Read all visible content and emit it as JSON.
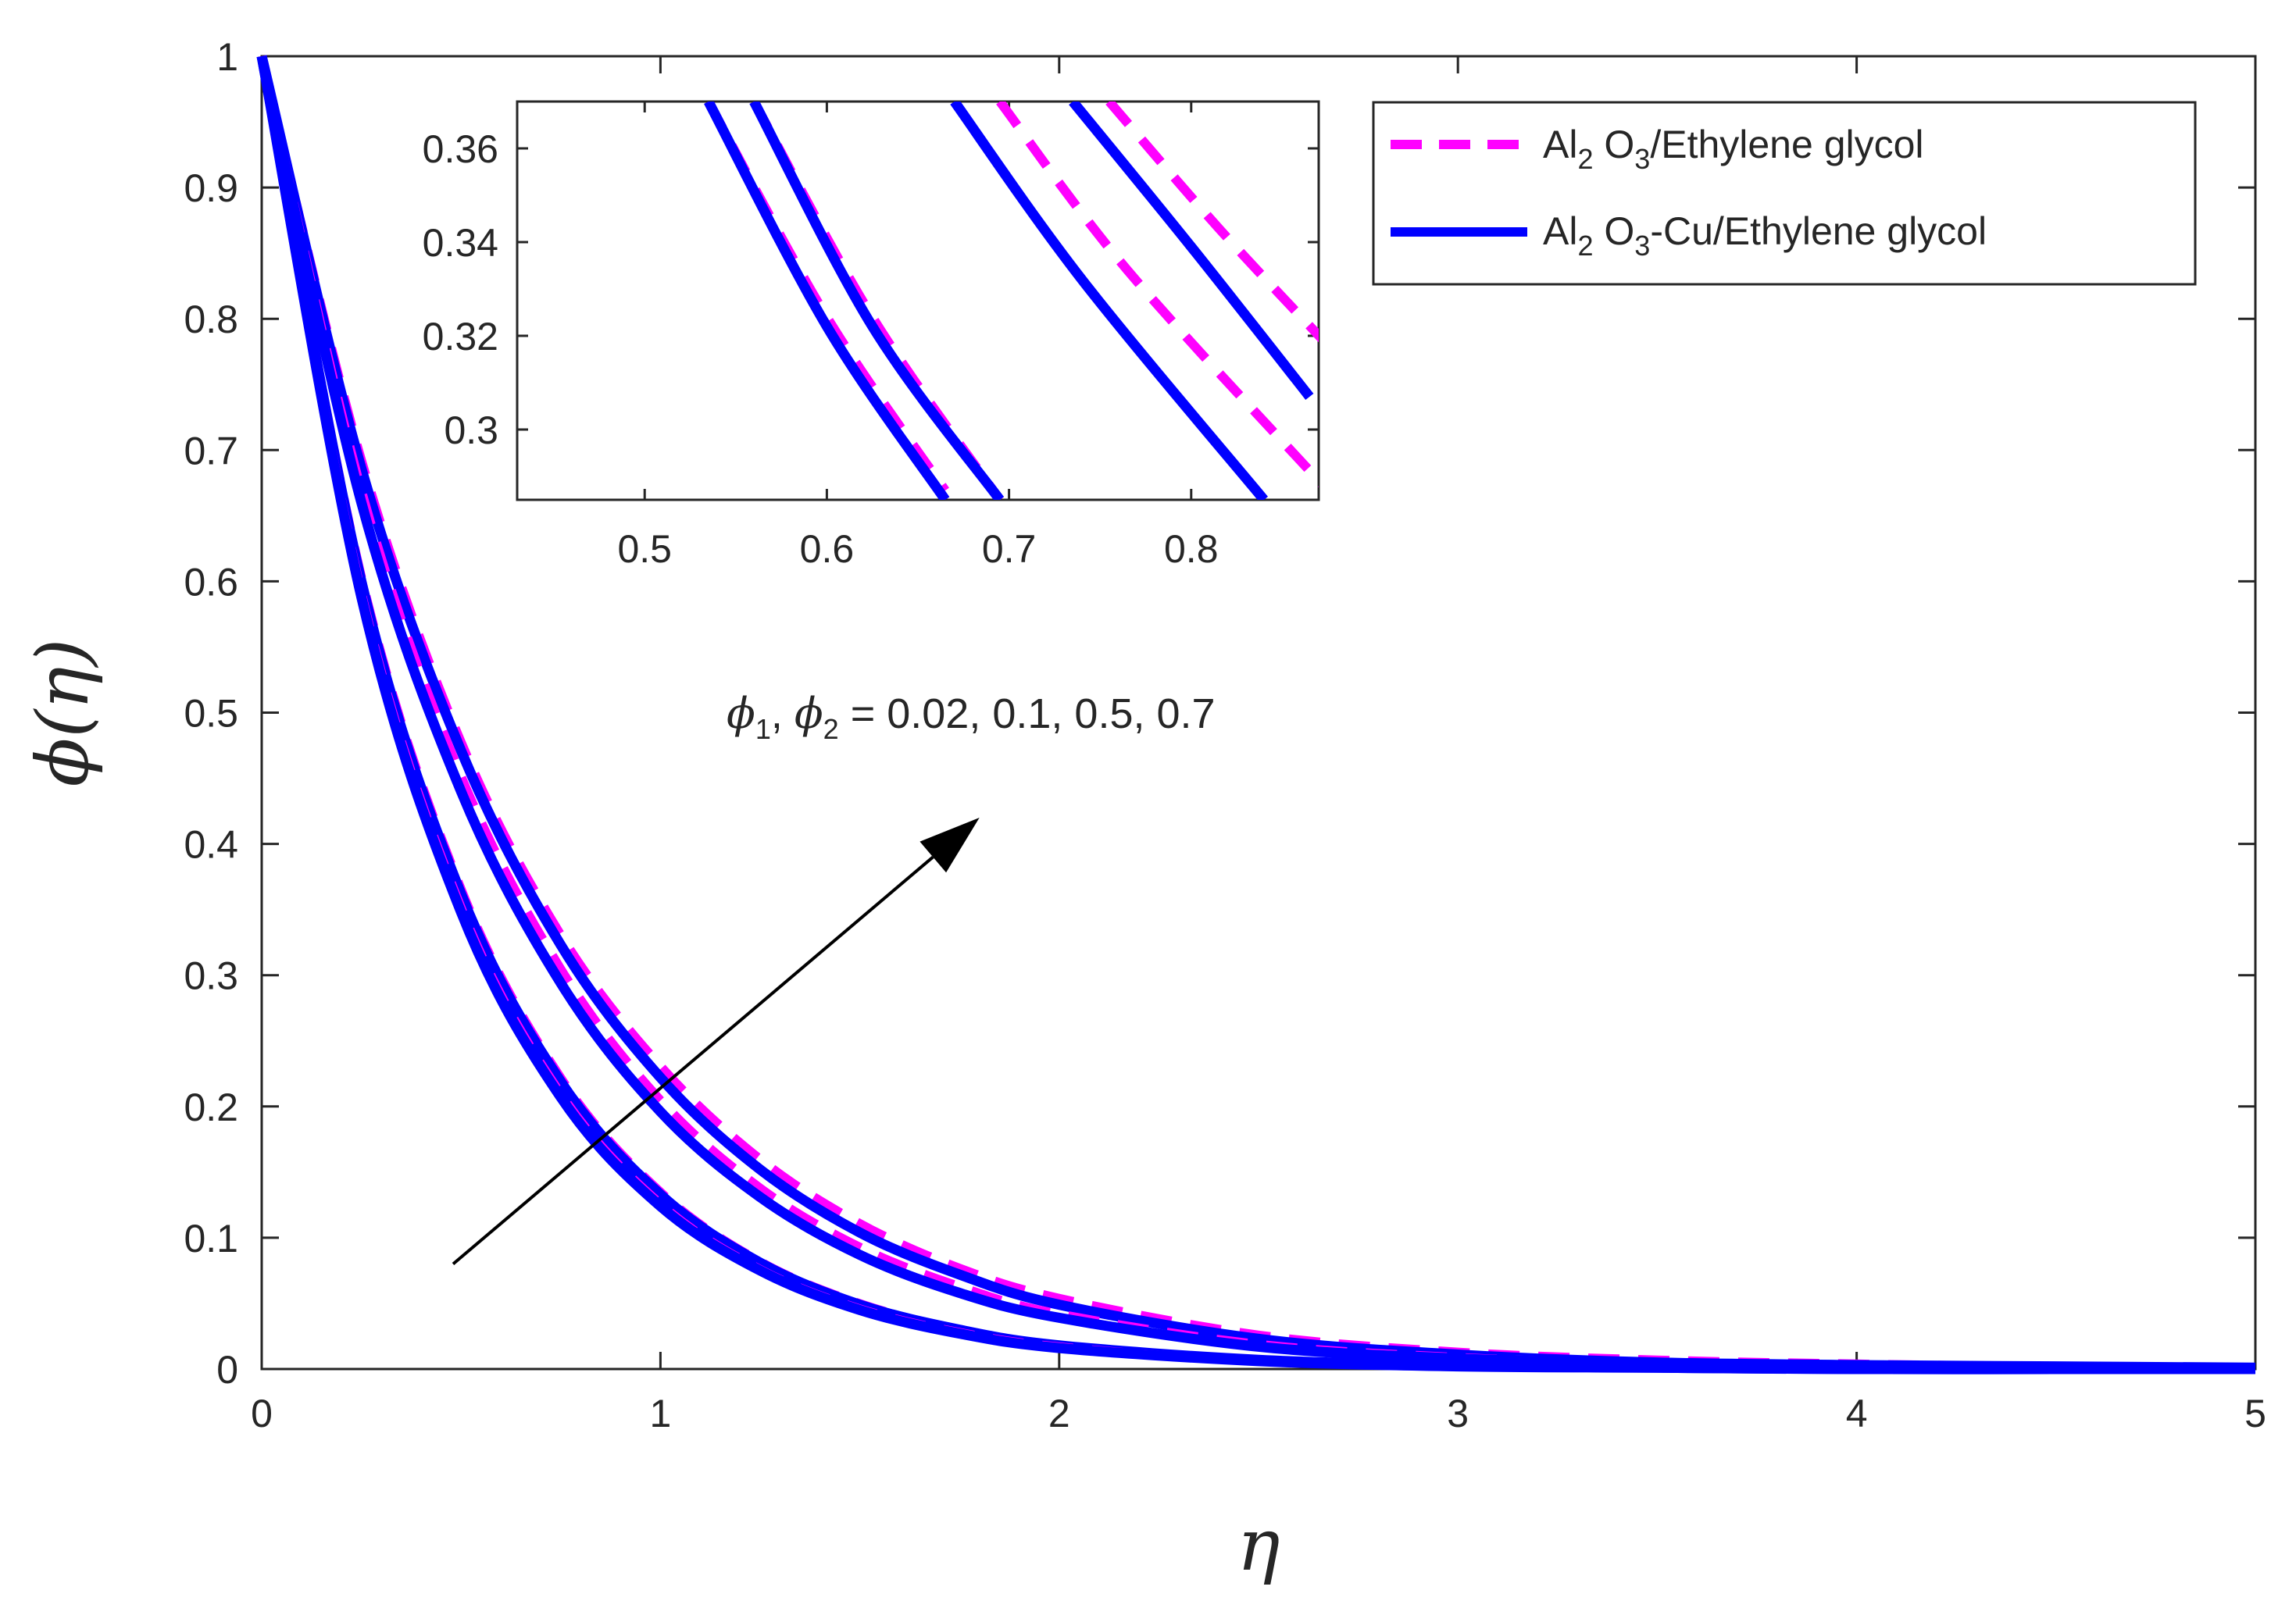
{
  "colors": {
    "al2o3": "#ff00ff",
    "hybrid": "#0000ff",
    "axes": "#262626",
    "arrow": "#000000"
  },
  "chart_data": {
    "type": "line",
    "xlabel": "η",
    "ylabel": "ϕ(η)",
    "xlim": [
      0,
      5
    ],
    "ylim": [
      0,
      1
    ],
    "xticks": [
      "0",
      "1",
      "2",
      "3",
      "4",
      "5"
    ],
    "yticks": [
      "0",
      "0.1",
      "0.2",
      "0.3",
      "0.4",
      "0.5",
      "0.6",
      "0.7",
      "0.8",
      "0.9",
      "1"
    ],
    "x": [
      0,
      0.25,
      0.5,
      0.75,
      1.0,
      1.25,
      1.5,
      1.75,
      2.0,
      2.5,
      3.0,
      3.5,
      4.0,
      4.5,
      5.0
    ],
    "series": [
      {
        "legend": "al2o3",
        "style": "dashed",
        "values": [
          1.0,
          0.693,
          0.478,
          0.331,
          0.231,
          0.16,
          0.111,
          0.077,
          0.054,
          0.026,
          0.013,
          0.007,
          0.004,
          0.002,
          0.001
        ]
      },
      {
        "legend": "hybrid",
        "style": "solid",
        "values": [
          1.0,
          0.686,
          0.471,
          0.323,
          0.222,
          0.152,
          0.104,
          0.072,
          0.049,
          0.023,
          0.011,
          0.005,
          0.003,
          0.002,
          0.001
        ]
      },
      {
        "legend": "al2o3",
        "style": "dashed",
        "values": [
          1.0,
          0.67,
          0.452,
          0.305,
          0.205,
          0.138,
          0.093,
          0.063,
          0.042,
          0.019,
          0.009,
          0.004,
          0.002,
          0.001,
          0.0
        ]
      },
      {
        "legend": "hybrid",
        "style": "solid",
        "values": [
          1.0,
          0.66,
          0.44,
          0.294,
          0.196,
          0.131,
          0.087,
          0.058,
          0.039,
          0.017,
          0.008,
          0.004,
          0.002,
          0.001,
          0.0
        ]
      },
      {
        "legend": "al2o3",
        "style": "dashed",
        "values": [
          1.0,
          0.604,
          0.366,
          0.222,
          0.135,
          0.082,
          0.05,
          0.03,
          0.018,
          0.007,
          0.003,
          0.001,
          0.0,
          0.0,
          0.0
        ]
      },
      {
        "legend": "hybrid",
        "style": "solid",
        "values": [
          1.0,
          0.6,
          0.362,
          0.219,
          0.133,
          0.081,
          0.049,
          0.03,
          0.018,
          0.007,
          0.003,
          0.001,
          0.0,
          0.0,
          0.0
        ]
      },
      {
        "legend": "al2o3",
        "style": "dashed",
        "values": [
          1.0,
          0.592,
          0.352,
          0.21,
          0.126,
          0.076,
          0.046,
          0.028,
          0.017,
          0.006,
          0.002,
          0.001,
          0.0,
          0.0,
          0.0
        ]
      },
      {
        "legend": "hybrid",
        "style": "solid",
        "values": [
          1.0,
          0.588,
          0.348,
          0.207,
          0.124,
          0.075,
          0.045,
          0.027,
          0.016,
          0.006,
          0.002,
          0.001,
          0.0,
          0.0,
          0.0
        ]
      }
    ],
    "legend": {
      "position": "top-right",
      "entries": [
        {
          "key": "al2o3",
          "style": "dashed",
          "label_main": "Al",
          "label_sub1": "2",
          "label_mid": " O",
          "label_sub2": "3",
          "label_tail": "/Ethylene glycol"
        },
        {
          "key": "hybrid",
          "style": "solid",
          "label_main": "Al",
          "label_sub1": "2",
          "label_mid": " O",
          "label_sub2": "3",
          "label_tail": "-Cu/Ethylene glycol"
        }
      ]
    },
    "annotation": {
      "phi": "ϕ",
      "sub1": "1",
      "sep": ", ",
      "sub2": "2",
      "tail": " = 0.02, 0.1, 0.5, 0.7",
      "arrow_from": [
        0.48,
        0.08
      ],
      "arrow_to": [
        1.8,
        0.42
      ]
    },
    "inset": {
      "xlim": [
        0.43,
        0.87
      ],
      "ylim": [
        0.285,
        0.37
      ],
      "xticks": [
        "0.5",
        "0.6",
        "0.7",
        "0.8"
      ],
      "yticks": [
        "0.3",
        "0.32",
        "0.34",
        "0.36"
      ],
      "series": [
        {
          "legend": "al2o3",
          "style": "dashed",
          "points": [
            [
              0.535,
              0.37
            ],
            [
              0.6,
              0.324
            ],
            [
              0.665,
              0.287
            ]
          ]
        },
        {
          "legend": "hybrid",
          "style": "solid",
          "points": [
            [
              0.535,
              0.37
            ],
            [
              0.6,
              0.322
            ],
            [
              0.665,
              0.285
            ]
          ]
        },
        {
          "legend": "al2o3",
          "style": "dashed",
          "points": [
            [
              0.56,
              0.37
            ],
            [
              0.625,
              0.324
            ],
            [
              0.695,
              0.285
            ]
          ]
        },
        {
          "legend": "hybrid",
          "style": "solid",
          "points": [
            [
              0.56,
              0.37
            ],
            [
              0.625,
              0.322
            ],
            [
              0.695,
              0.285
            ]
          ]
        },
        {
          "legend": "al2o3",
          "style": "dashed",
          "points": [
            [
              0.755,
              0.37
            ],
            [
              0.815,
              0.343
            ],
            [
              0.875,
              0.318
            ]
          ]
        },
        {
          "legend": "hybrid",
          "style": "solid",
          "points": [
            [
              0.735,
              0.37
            ],
            [
              0.8,
              0.339
            ],
            [
              0.865,
              0.307
            ]
          ]
        },
        {
          "legend": "al2o3",
          "style": "dashed",
          "points": [
            [
              0.695,
              0.37
            ],
            [
              0.765,
              0.334
            ],
            [
              0.875,
              0.287
            ]
          ]
        },
        {
          "legend": "hybrid",
          "style": "solid",
          "points": [
            [
              0.67,
              0.37
            ],
            [
              0.74,
              0.332
            ],
            [
              0.84,
              0.285
            ]
          ]
        }
      ]
    }
  }
}
